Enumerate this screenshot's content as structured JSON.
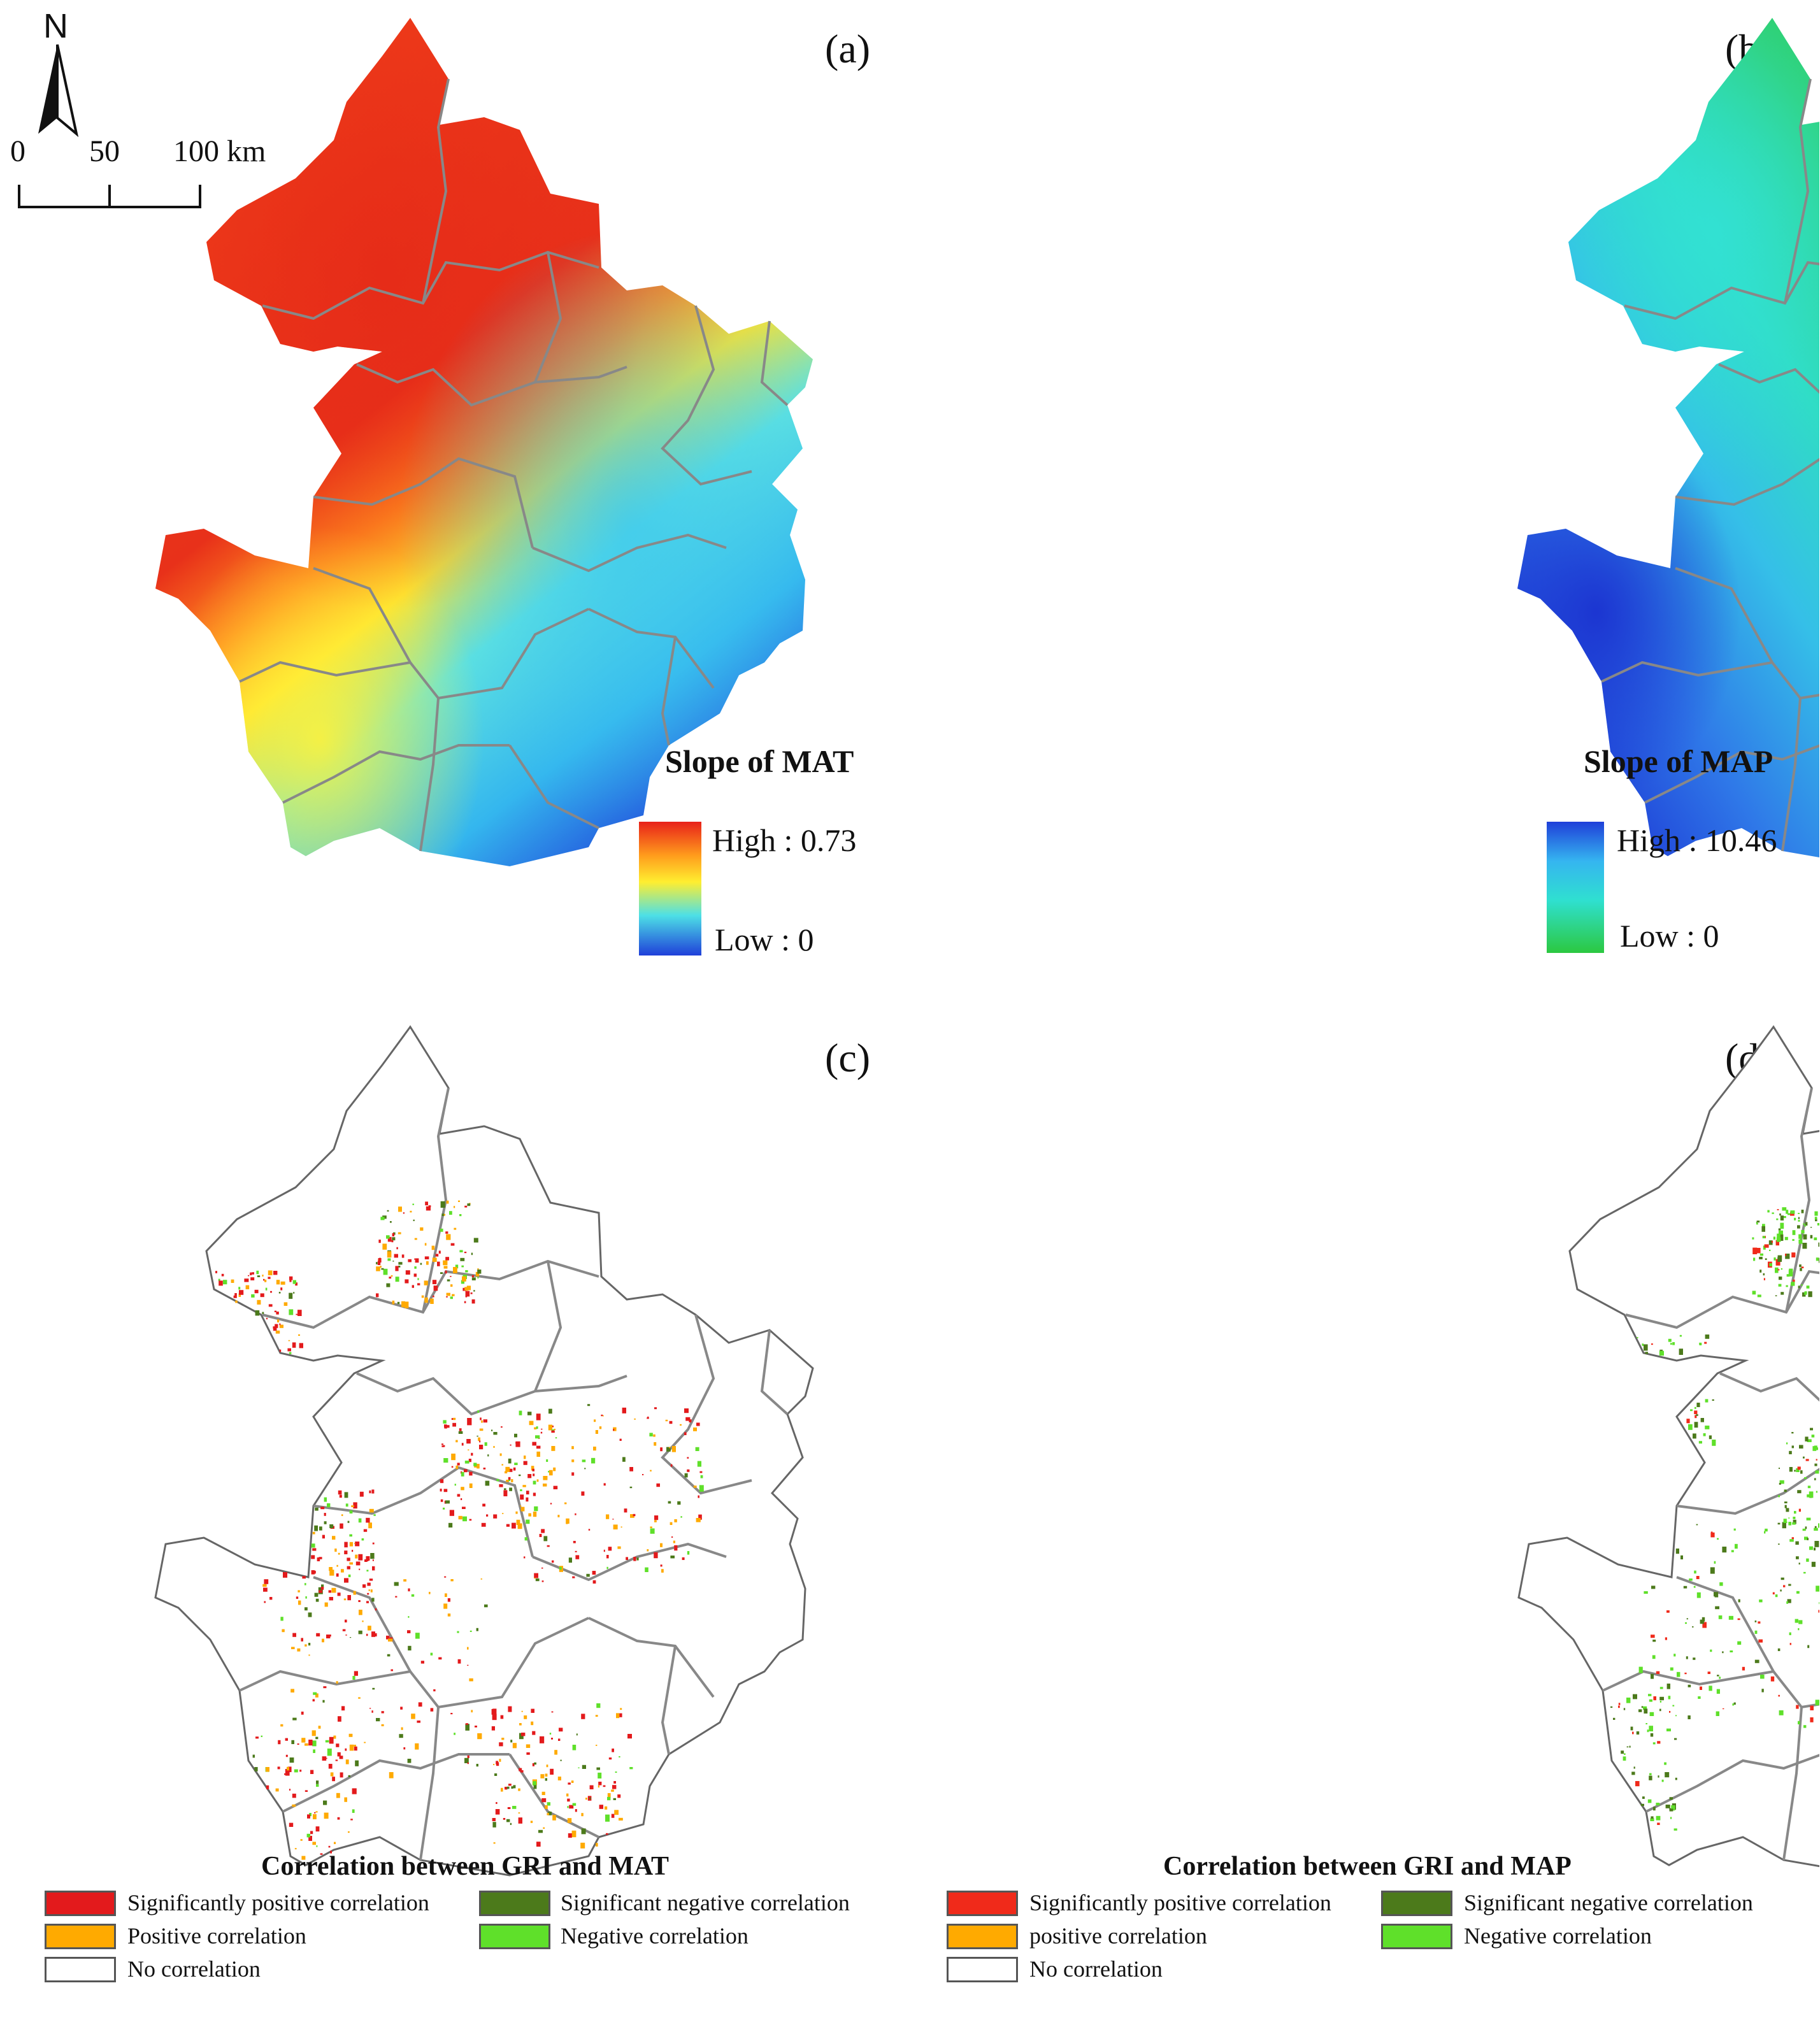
{
  "panels": {
    "a": {
      "label": "(a)",
      "legend_title": "Slope of MAT",
      "high": "High : 0.73",
      "low": "Low : 0",
      "ramp_colors": [
        "#e8211a",
        "#ff9b1c",
        "#ffee30",
        "#4de0e6",
        "#1f3fd9"
      ]
    },
    "b": {
      "label": "(b)",
      "legend_title": "Slope of MAP",
      "high": "High : 10.46",
      "low": "Low : 0",
      "ramp_colors": [
        "#1f3fd9",
        "#35b5f0",
        "#2fe0d0",
        "#2cc840"
      ]
    },
    "c": {
      "label": "(c)",
      "legend_title": "Correlation between GRI and MAT",
      "items": [
        {
          "label": "Significantly positive correlation",
          "color": "#e31a1c"
        },
        {
          "label": "Significant negative correlation",
          "color": "#4c7a1b"
        },
        {
          "label": "Positive correlation",
          "color": "#ffaa00"
        },
        {
          "label": "Negative correlation",
          "color": "#5fe02a"
        },
        {
          "label": "No correlation",
          "color": "#ffffff"
        }
      ]
    },
    "d": {
      "label": "(d)",
      "legend_title": "Correlation between GRI and MAP",
      "items": [
        {
          "label": "Significantly positive correlation",
          "color": "#f02a1a"
        },
        {
          "label": "Significant negative correlation",
          "color": "#4c7a1b"
        },
        {
          "label": "positive correlation",
          "color": "#ffaa00"
        },
        {
          "label": "Negative correlation",
          "color": "#5fe02a"
        },
        {
          "label": "No correlation",
          "color": "#ffffff"
        }
      ]
    }
  },
  "north_arrow": {
    "label": "N"
  },
  "scale_bar": {
    "ticks": [
      "0",
      "50",
      "100 km"
    ]
  }
}
